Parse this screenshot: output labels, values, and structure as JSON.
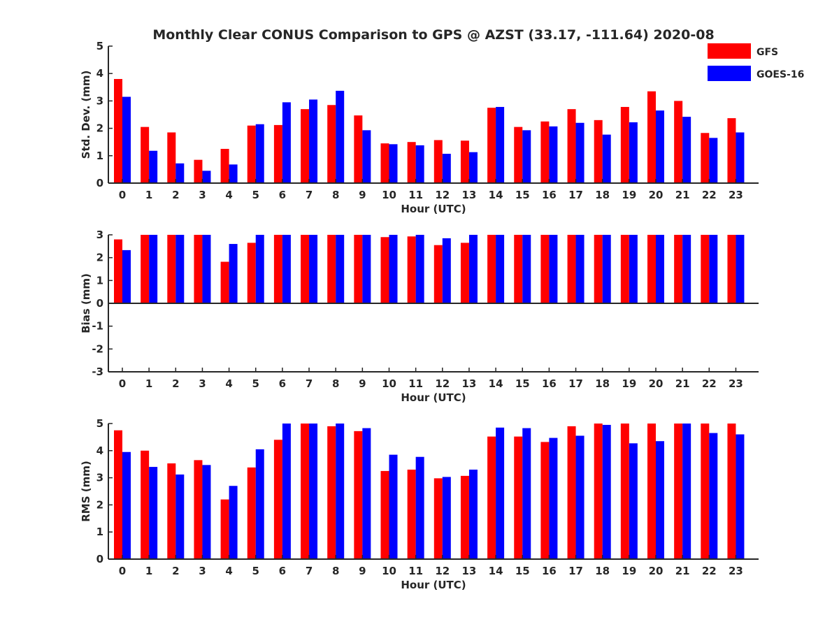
{
  "title": "Monthly Clear CONUS Comparison to GPS @ AZST (33.17, -111.64) 2020-08",
  "colors": {
    "GFS": "#ff0000",
    "GOES-16": "#0000ff",
    "axis": "#262626"
  },
  "legend": {
    "placement": "top-right",
    "entries": [
      "GFS",
      "GOES-16"
    ]
  },
  "chart_data": [
    {
      "type": "bar",
      "xlabel": "Hour (UTC)",
      "ylabel": "Std. Dev. (mm)",
      "ylim": [
        0,
        5
      ],
      "yticks": [
        0,
        1,
        2,
        3,
        4,
        5
      ],
      "categories": [
        "0",
        "1",
        "2",
        "3",
        "4",
        "5",
        "6",
        "7",
        "8",
        "9",
        "10",
        "11",
        "12",
        "13",
        "14",
        "15",
        "16",
        "17",
        "18",
        "19",
        "20",
        "21",
        "22",
        "23"
      ],
      "series": [
        {
          "name": "GFS",
          "values": [
            3.8,
            2.05,
            1.85,
            0.85,
            1.25,
            2.1,
            2.12,
            2.7,
            2.85,
            2.47,
            1.45,
            1.5,
            1.57,
            1.55,
            2.75,
            2.05,
            2.25,
            2.7,
            2.3,
            2.78,
            3.35,
            3.0,
            1.83,
            2.37
          ]
        },
        {
          "name": "GOES-16",
          "values": [
            3.15,
            1.18,
            0.72,
            0.45,
            0.68,
            2.15,
            2.95,
            3.05,
            3.37,
            1.93,
            1.42,
            1.38,
            1.07,
            1.13,
            2.78,
            1.93,
            2.07,
            2.2,
            1.77,
            2.22,
            2.65,
            2.42,
            1.65,
            1.85
          ]
        }
      ]
    },
    {
      "type": "bar",
      "xlabel": "Hour (UTC)",
      "ylabel": "Bias (mm)",
      "ylim": [
        -3,
        3
      ],
      "yticks": [
        -3,
        -2,
        -1,
        0,
        1,
        2,
        3
      ],
      "categories": [
        "0",
        "1",
        "2",
        "3",
        "4",
        "5",
        "6",
        "7",
        "8",
        "9",
        "10",
        "11",
        "12",
        "13",
        "14",
        "15",
        "16",
        "17",
        "18",
        "19",
        "20",
        "21",
        "22",
        "23"
      ],
      "series": [
        {
          "name": "GFS",
          "values": [
            2.8,
            3,
            3,
            3,
            1.82,
            2.65,
            3,
            3,
            3,
            3,
            2.9,
            2.93,
            2.55,
            2.65,
            3,
            3,
            3,
            3,
            3,
            3,
            3,
            3,
            3,
            3
          ]
        },
        {
          "name": "GOES-16",
          "values": [
            2.33,
            3,
            3,
            3,
            2.6,
            3,
            3,
            3,
            3,
            3,
            3,
            3,
            2.85,
            3,
            3,
            3,
            3,
            3,
            3,
            3,
            3,
            3,
            3,
            3
          ]
        }
      ]
    },
    {
      "type": "bar",
      "xlabel": "Hour (UTC)",
      "ylabel": "RMS (mm)",
      "ylim": [
        0,
        5
      ],
      "yticks": [
        0,
        1,
        2,
        3,
        4,
        5
      ],
      "categories": [
        "0",
        "1",
        "2",
        "3",
        "4",
        "5",
        "6",
        "7",
        "8",
        "9",
        "10",
        "11",
        "12",
        "13",
        "14",
        "15",
        "16",
        "17",
        "18",
        "19",
        "20",
        "21",
        "22",
        "23"
      ],
      "series": [
        {
          "name": "GFS",
          "values": [
            4.75,
            4.0,
            3.53,
            3.65,
            2.2,
            3.38,
            4.4,
            5.0,
            4.9,
            4.72,
            3.25,
            3.3,
            2.98,
            3.07,
            4.52,
            4.52,
            4.32,
            4.9,
            5.0,
            5.0,
            5.0,
            5.0,
            5.0,
            5.0
          ]
        },
        {
          "name": "GOES-16",
          "values": [
            3.95,
            3.4,
            3.12,
            3.47,
            2.7,
            4.05,
            5.0,
            5.0,
            5.0,
            4.83,
            3.85,
            3.77,
            3.03,
            3.3,
            4.85,
            4.83,
            4.47,
            4.55,
            4.95,
            4.27,
            4.35,
            5.0,
            4.65,
            4.6
          ]
        }
      ]
    }
  ]
}
